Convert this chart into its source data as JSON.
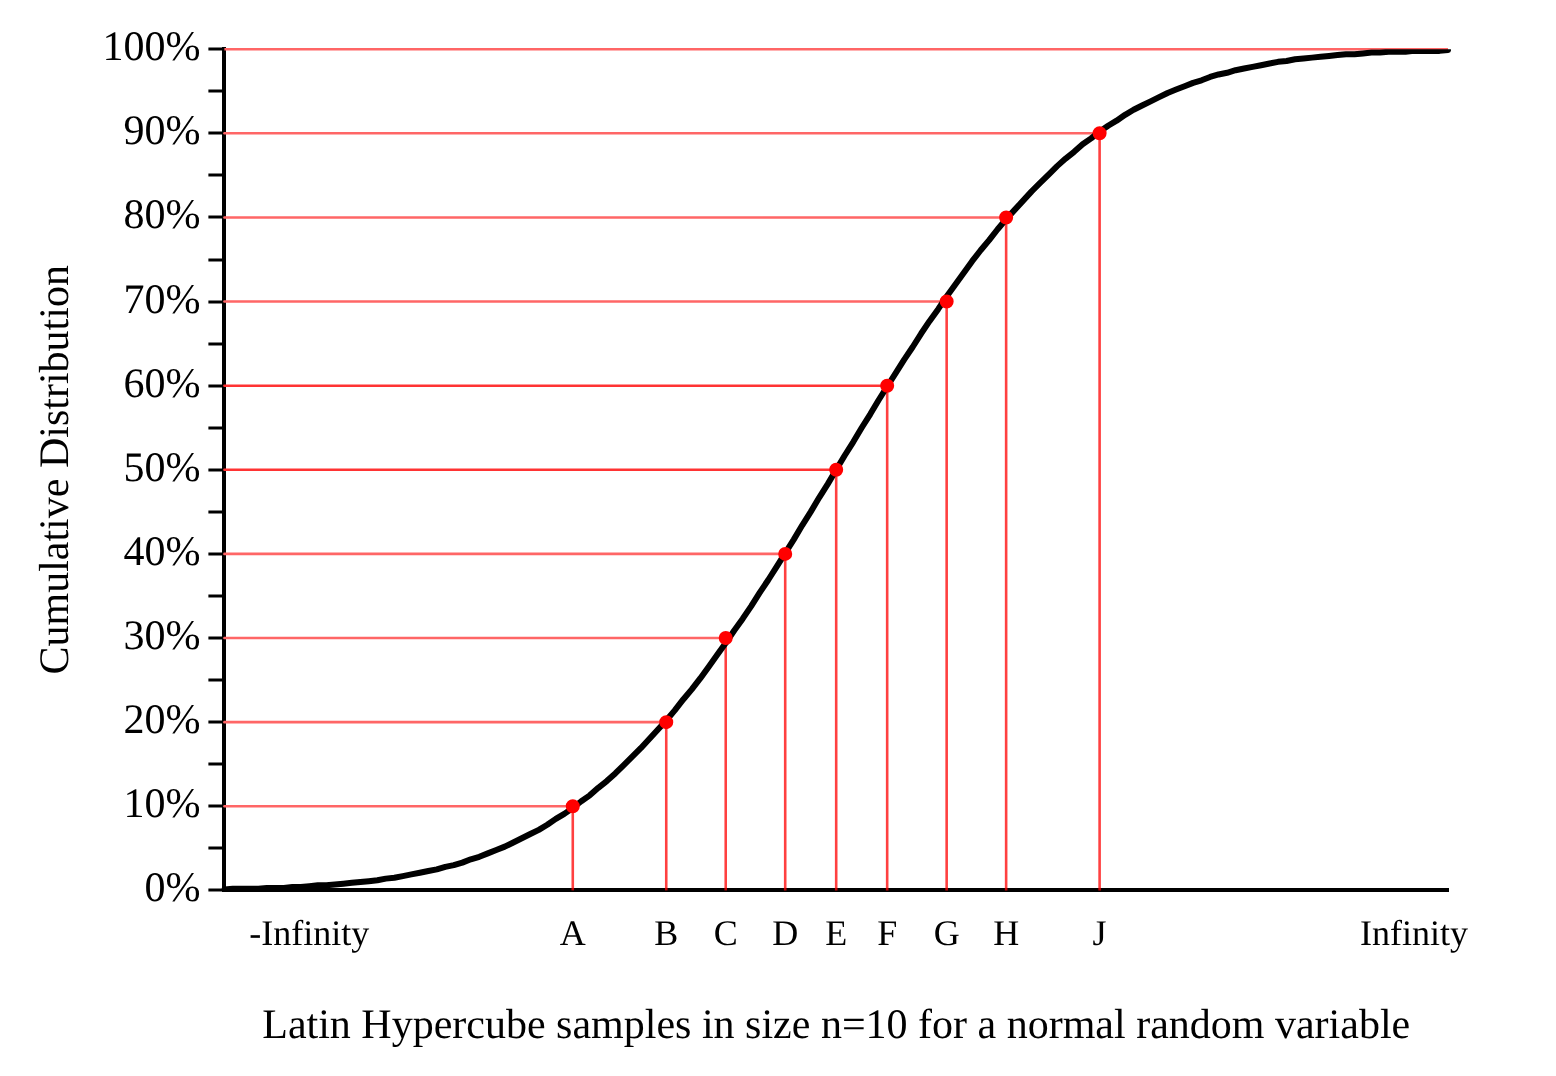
{
  "chart_data": {
    "type": "line",
    "xlabel": "Latin Hypercube samples in size n=10 for a normal random variable",
    "ylabel": "Cumulative Distribution",
    "categories": [
      null,
      null,
      null,
      null,
      null,
      null,
      null,
      null,
      null,
      null,
      "-Infinity",
      null,
      null,
      null,
      null,
      null,
      null,
      null,
      null,
      null,
      null,
      null,
      null,
      null,
      null,
      null,
      null,
      null,
      null,
      null,
      null,
      null,
      null,
      null,
      null,
      null,
      null,
      null,
      null,
      null,
      null,
      "A",
      null,
      null,
      null,
      null,
      null,
      null,
      null,
      null,
      null,
      null,
      "B",
      null,
      null,
      null,
      null,
      null,
      null,
      "C",
      null,
      null,
      null,
      null,
      null,
      null,
      "D",
      null,
      null,
      null,
      null,
      null,
      "E",
      null,
      null,
      null,
      null,
      null,
      "F",
      null,
      null,
      null,
      null,
      null,
      null,
      "G",
      null,
      null,
      null,
      null,
      null,
      null,
      "H",
      null,
      null,
      null,
      null,
      null,
      null,
      null,
      null,
      null,
      null,
      "J",
      null,
      null,
      null,
      null,
      null,
      null,
      null,
      null,
      null,
      null,
      null,
      null,
      null,
      null,
      null,
      null,
      null,
      null,
      null,
      null,
      null,
      null,
      null,
      null,
      null,
      null,
      null,
      null,
      null,
      null,
      null,
      null,
      null,
      null,
      null,
      null,
      "Infinity",
      null,
      null,
      null,
      null
    ],
    "ylim": [
      0,
      100
    ],
    "yticks": [
      {
        "value": 0,
        "label": "0%"
      },
      {
        "value": 5,
        "label": null
      },
      {
        "value": 10,
        "label": "10%"
      },
      {
        "value": 15,
        "label": null
      },
      {
        "value": 20,
        "label": "20%"
      },
      {
        "value": 25,
        "label": null
      },
      {
        "value": 30,
        "label": "30%"
      },
      {
        "value": 35,
        "label": null
      },
      {
        "value": 40,
        "label": "40%"
      },
      {
        "value": 45,
        "label": null
      },
      {
        "value": 50,
        "label": "50%"
      },
      {
        "value": 55,
        "label": null
      },
      {
        "value": 60,
        "label": "60%"
      },
      {
        "value": 65,
        "label": null
      },
      {
        "value": 70,
        "label": "70%"
      },
      {
        "value": 75,
        "label": null
      },
      {
        "value": 80,
        "label": "80%"
      },
      {
        "value": 85,
        "label": null
      },
      {
        "value": 90,
        "label": "90%"
      },
      {
        "value": 95,
        "label": null
      },
      {
        "value": 100,
        "label": "100%"
      }
    ],
    "grid": false,
    "legend": false,
    "marker": "none",
    "line_style": "solid",
    "ref_lines": [
      {
        "axis": "y",
        "value": 100,
        "color": "#ff6666"
      }
    ],
    "series": [
      {
        "color": "#ff6666",
        "values": [
          10,
          10,
          10,
          10,
          10,
          10,
          10,
          10,
          10,
          10,
          10,
          10,
          10,
          10,
          10,
          10,
          10,
          10,
          10,
          10,
          10,
          10,
          10,
          10,
          10,
          10,
          10,
          10,
          10,
          10,
          10,
          10,
          10,
          10,
          10,
          10,
          10,
          10,
          10,
          10,
          10,
          10,
          null,
          null,
          null,
          null,
          null,
          null,
          null,
          null,
          null,
          null,
          null,
          null,
          null,
          null,
          null,
          null,
          null,
          null,
          null,
          null,
          null,
          null,
          null,
          null,
          null,
          null,
          null,
          null,
          null,
          null,
          null,
          null,
          null,
          null,
          null,
          null,
          null,
          null,
          null,
          null,
          null,
          null,
          null,
          null,
          null,
          null,
          null,
          null,
          null,
          null,
          null,
          null,
          null,
          null,
          null,
          null,
          null,
          null,
          null,
          null,
          null,
          null,
          null,
          null,
          null,
          null,
          null,
          null,
          null,
          null,
          null,
          null,
          null,
          null,
          null,
          null,
          null,
          null,
          null,
          null,
          null,
          null,
          null,
          null,
          null,
          null,
          null,
          null,
          null,
          null,
          null,
          null,
          null,
          null,
          null,
          null,
          null,
          null,
          null,
          null,
          null,
          null,
          null
        ]
      },
      {
        "color": "#ff6666",
        "values": [
          20,
          20,
          20,
          20,
          20,
          20,
          20,
          20,
          20,
          20,
          20,
          20,
          20,
          20,
          20,
          20,
          20,
          20,
          20,
          20,
          20,
          20,
          20,
          20,
          20,
          20,
          20,
          20,
          20,
          20,
          20,
          20,
          20,
          20,
          20,
          20,
          20,
          20,
          20,
          20,
          20,
          20,
          20,
          20,
          20,
          20,
          20,
          20,
          20,
          20,
          20,
          20,
          20,
          null,
          null,
          null,
          null,
          null,
          null,
          null,
          null,
          null,
          null,
          null,
          null,
          null,
          null,
          null,
          null,
          null,
          null,
          null,
          null,
          null,
          null,
          null,
          null,
          null,
          null,
          null,
          null,
          null,
          null,
          null,
          null,
          null,
          null,
          null,
          null,
          null,
          null,
          null,
          null,
          null,
          null,
          null,
          null,
          null,
          null,
          null,
          null,
          null,
          null,
          null,
          null,
          null,
          null,
          null,
          null,
          null,
          null,
          null,
          null,
          null,
          null,
          null,
          null,
          null,
          null,
          null,
          null,
          null,
          null,
          null,
          null,
          null,
          null,
          null,
          null,
          null,
          null,
          null,
          null,
          null,
          null,
          null,
          null,
          null,
          null,
          null,
          null,
          null,
          null,
          null,
          null
        ]
      },
      {
        "color": "#ff6666",
        "values": [
          30,
          30,
          30,
          30,
          30,
          30,
          30,
          30,
          30,
          30,
          30,
          30,
          30,
          30,
          30,
          30,
          30,
          30,
          30,
          30,
          30,
          30,
          30,
          30,
          30,
          30,
          30,
          30,
          30,
          30,
          30,
          30,
          30,
          30,
          30,
          30,
          30,
          30,
          30,
          30,
          30,
          30,
          30,
          30,
          30,
          30,
          30,
          30,
          30,
          30,
          30,
          30,
          30,
          30,
          30,
          30,
          30,
          30,
          30,
          30,
          null,
          null,
          null,
          null,
          null,
          null,
          null,
          null,
          null,
          null,
          null,
          null,
          null,
          null,
          null,
          null,
          null,
          null,
          null,
          null,
          null,
          null,
          null,
          null,
          null,
          null,
          null,
          null,
          null,
          null,
          null,
          null,
          null,
          null,
          null,
          null,
          null,
          null,
          null,
          null,
          null,
          null,
          null,
          null,
          null,
          null,
          null,
          null,
          null,
          null,
          null,
          null,
          null,
          null,
          null,
          null,
          null,
          null,
          null,
          null,
          null,
          null,
          null,
          null,
          null,
          null,
          null,
          null,
          null,
          null,
          null,
          null,
          null,
          null,
          null,
          null,
          null,
          null,
          null,
          null,
          null,
          null,
          null,
          null,
          null
        ]
      },
      {
        "color": "#ff6666",
        "values": [
          40,
          40,
          40,
          40,
          40,
          40,
          40,
          40,
          40,
          40,
          40,
          40,
          40,
          40,
          40,
          40,
          40,
          40,
          40,
          40,
          40,
          40,
          40,
          40,
          40,
          40,
          40,
          40,
          40,
          40,
          40,
          40,
          40,
          40,
          40,
          40,
          40,
          40,
          40,
          40,
          40,
          40,
          40,
          40,
          40,
          40,
          40,
          40,
          40,
          40,
          40,
          40,
          40,
          40,
          40,
          40,
          40,
          40,
          40,
          40,
          40,
          40,
          40,
          40,
          40,
          40,
          40,
          null,
          null,
          null,
          null,
          null,
          null,
          null,
          null,
          null,
          null,
          null,
          null,
          null,
          null,
          null,
          null,
          null,
          null,
          null,
          null,
          null,
          null,
          null,
          null,
          null,
          null,
          null,
          null,
          null,
          null,
          null,
          null,
          null,
          null,
          null,
          null,
          null,
          null,
          null,
          null,
          null,
          null,
          null,
          null,
          null,
          null,
          null,
          null,
          null,
          null,
          null,
          null,
          null,
          null,
          null,
          null,
          null,
          null,
          null,
          null,
          null,
          null,
          null,
          null,
          null,
          null,
          null,
          null,
          null,
          null,
          null,
          null,
          null,
          null,
          null,
          null,
          null,
          null
        ]
      },
      {
        "color": "#ff3333",
        "values": [
          50,
          50,
          50,
          50,
          50,
          50,
          50,
          50,
          50,
          50,
          50,
          50,
          50,
          50,
          50,
          50,
          50,
          50,
          50,
          50,
          50,
          50,
          50,
          50,
          50,
          50,
          50,
          50,
          50,
          50,
          50,
          50,
          50,
          50,
          50,
          50,
          50,
          50,
          50,
          50,
          50,
          50,
          50,
          50,
          50,
          50,
          50,
          50,
          50,
          50,
          50,
          50,
          50,
          50,
          50,
          50,
          50,
          50,
          50,
          50,
          50,
          50,
          50,
          50,
          50,
          50,
          50,
          50,
          50,
          50,
          50,
          50,
          50,
          null,
          null,
          null,
          null,
          null,
          null,
          null,
          null,
          null,
          null,
          null,
          null,
          null,
          null,
          null,
          null,
          null,
          null,
          null,
          null,
          null,
          null,
          null,
          null,
          null,
          null,
          null,
          null,
          null,
          null,
          null,
          null,
          null,
          null,
          null,
          null,
          null,
          null,
          null,
          null,
          null,
          null,
          null,
          null,
          null,
          null,
          null,
          null,
          null,
          null,
          null,
          null,
          null,
          null,
          null,
          null,
          null,
          null,
          null,
          null,
          null,
          null,
          null,
          null,
          null,
          null,
          null,
          null,
          null,
          null,
          null,
          null
        ]
      },
      {
        "color": "#ff3333",
        "values": [
          60,
          60,
          60,
          60,
          60,
          60,
          60,
          60,
          60,
          60,
          60,
          60,
          60,
          60,
          60,
          60,
          60,
          60,
          60,
          60,
          60,
          60,
          60,
          60,
          60,
          60,
          60,
          60,
          60,
          60,
          60,
          60,
          60,
          60,
          60,
          60,
          60,
          60,
          60,
          60,
          60,
          60,
          60,
          60,
          60,
          60,
          60,
          60,
          60,
          60,
          60,
          60,
          60,
          60,
          60,
          60,
          60,
          60,
          60,
          60,
          60,
          60,
          60,
          60,
          60,
          60,
          60,
          60,
          60,
          60,
          60,
          60,
          60,
          60,
          60,
          60,
          60,
          60,
          60,
          null,
          null,
          null,
          null,
          null,
          null,
          null,
          null,
          null,
          null,
          null,
          null,
          null,
          null,
          null,
          null,
          null,
          null,
          null,
          null,
          null,
          null,
          null,
          null,
          null,
          null,
          null,
          null,
          null,
          null,
          null,
          null,
          null,
          null,
          null,
          null,
          null,
          null,
          null,
          null,
          null,
          null,
          null,
          null,
          null,
          null,
          null,
          null,
          null,
          null,
          null,
          null,
          null,
          null,
          null,
          null,
          null,
          null,
          null,
          null,
          null,
          null,
          null,
          null,
          null,
          null
        ]
      },
      {
        "color": "#ff6666",
        "values": [
          70,
          70,
          70,
          70,
          70,
          70,
          70,
          70,
          70,
          70,
          70,
          70,
          70,
          70,
          70,
          70,
          70,
          70,
          70,
          70,
          70,
          70,
          70,
          70,
          70,
          70,
          70,
          70,
          70,
          70,
          70,
          70,
          70,
          70,
          70,
          70,
          70,
          70,
          70,
          70,
          70,
          70,
          70,
          70,
          70,
          70,
          70,
          70,
          70,
          70,
          70,
          70,
          70,
          70,
          70,
          70,
          70,
          70,
          70,
          70,
          70,
          70,
          70,
          70,
          70,
          70,
          70,
          70,
          70,
          70,
          70,
          70,
          70,
          70,
          70,
          70,
          70,
          70,
          70,
          70,
          70,
          70,
          70,
          70,
          70,
          70,
          null,
          null,
          null,
          null,
          null,
          null,
          null,
          null,
          null,
          null,
          null,
          null,
          null,
          null,
          null,
          null,
          null,
          null,
          null,
          null,
          null,
          null,
          null,
          null,
          null,
          null,
          null,
          null,
          null,
          null,
          null,
          null,
          null,
          null,
          null,
          null,
          null,
          null,
          null,
          null,
          null,
          null,
          null,
          null,
          null,
          null,
          null,
          null,
          null,
          null,
          null,
          null,
          null,
          null,
          null,
          null,
          null,
          null,
          null
        ]
      },
      {
        "color": "#ff6666",
        "values": [
          80,
          80,
          80,
          80,
          80,
          80,
          80,
          80,
          80,
          80,
          80,
          80,
          80,
          80,
          80,
          80,
          80,
          80,
          80,
          80,
          80,
          80,
          80,
          80,
          80,
          80,
          80,
          80,
          80,
          80,
          80,
          80,
          80,
          80,
          80,
          80,
          80,
          80,
          80,
          80,
          80,
          80,
          80,
          80,
          80,
          80,
          80,
          80,
          80,
          80,
          80,
          80,
          80,
          80,
          80,
          80,
          80,
          80,
          80,
          80,
          80,
          80,
          80,
          80,
          80,
          80,
          80,
          80,
          80,
          80,
          80,
          80,
          80,
          80,
          80,
          80,
          80,
          80,
          80,
          80,
          80,
          80,
          80,
          80,
          80,
          80,
          80,
          80,
          80,
          80,
          80,
          80,
          80,
          null,
          null,
          null,
          null,
          null,
          null,
          null,
          null,
          null,
          null,
          null,
          null,
          null,
          null,
          null,
          null,
          null,
          null,
          null,
          null,
          null,
          null,
          null,
          null,
          null,
          null,
          null,
          null,
          null,
          null,
          null,
          null,
          null,
          null,
          null,
          null,
          null,
          null,
          null,
          null,
          null,
          null,
          null,
          null,
          null,
          null,
          null,
          null,
          null,
          null,
          null,
          null
        ]
      },
      {
        "color": "#ff6666",
        "values": [
          90,
          90,
          90,
          90,
          90,
          90,
          90,
          90,
          90,
          90,
          90,
          90,
          90,
          90,
          90,
          90,
          90,
          90,
          90,
          90,
          90,
          90,
          90,
          90,
          90,
          90,
          90,
          90,
          90,
          90,
          90,
          90,
          90,
          90,
          90,
          90,
          90,
          90,
          90,
          90,
          90,
          90,
          90,
          90,
          90,
          90,
          90,
          90,
          90,
          90,
          90,
          90,
          90,
          90,
          90,
          90,
          90,
          90,
          90,
          90,
          90,
          90,
          90,
          90,
          90,
          90,
          90,
          90,
          90,
          90,
          90,
          90,
          90,
          90,
          90,
          90,
          90,
          90,
          90,
          90,
          90,
          90,
          90,
          90,
          90,
          90,
          90,
          90,
          90,
          90,
          90,
          90,
          90,
          90,
          90,
          90,
          90,
          90,
          90,
          90,
          90,
          90,
          90,
          90,
          null,
          null,
          null,
          null,
          null,
          null,
          null,
          null,
          null,
          null,
          null,
          null,
          null,
          null,
          null,
          null,
          null,
          null,
          null,
          null,
          null,
          null,
          null,
          null,
          null,
          null,
          null,
          null,
          null,
          null,
          null,
          null,
          null,
          null,
          null,
          null,
          null,
          null,
          null,
          null,
          null
        ]
      },
      {
        "color": "#000000",
        "values": [
          0.1,
          0.2,
          0.2,
          0.2,
          0.2,
          0.3,
          0.3,
          0.3,
          0.4,
          0.4,
          0.5,
          0.6,
          0.6,
          0.7,
          0.8,
          0.9,
          1.0,
          1.1,
          1.2,
          1.4,
          1.5,
          1.7,
          1.9,
          2.1,
          2.3,
          2.5,
          2.8,
          3.0,
          3.3,
          3.7,
          4.0,
          4.4,
          4.8,
          5.2,
          5.7,
          6.2,
          6.7,
          7.2,
          7.8,
          8.5,
          9.1,
          9.8,
          10.6,
          11.3,
          12.2,
          13.0,
          13.9,
          14.9,
          15.9,
          16.9,
          18.0,
          19.1,
          20.2,
          21.4,
          22.7,
          23.9,
          25.2,
          26.6,
          28.0,
          29.4,
          30.9,
          32.3,
          33.8,
          35.4,
          36.9,
          38.5,
          40.1,
          41.7,
          43.4,
          45.0,
          46.7,
          48.3,
          50.0,
          51.7,
          53.3,
          55.0,
          56.6,
          58.3,
          59.9,
          61.5,
          63.1,
          64.6,
          66.2,
          67.7,
          69.1,
          70.6,
          72.0,
          73.4,
          74.8,
          76.1,
          77.3,
          78.6,
          79.8,
          80.9,
          82.0,
          83.1,
          84.1,
          85.1,
          86.1,
          87.0,
          87.8,
          88.7,
          89.4,
          90.2,
          90.9,
          91.5,
          92.2,
          92.8,
          93.3,
          93.8,
          94.3,
          94.8,
          95.2,
          95.6,
          96.0,
          96.3,
          96.7,
          97.0,
          97.2,
          97.5,
          97.7,
          97.9,
          98.1,
          98.3,
          98.5,
          98.6,
          98.8,
          98.9,
          99.0,
          99.1,
          99.2,
          99.3,
          99.4,
          99.4,
          99.5,
          99.6,
          99.6,
          99.7,
          99.7,
          99.7,
          99.8,
          99.8,
          99.8,
          99.8,
          99.9
        ]
      },
      {
        "type": "lollipop",
        "marker": "circle",
        "color": "#ff0000",
        "values": [
          null,
          null,
          null,
          null,
          null,
          null,
          null,
          null,
          null,
          null,
          null,
          null,
          null,
          null,
          null,
          null,
          null,
          null,
          null,
          null,
          null,
          null,
          null,
          null,
          null,
          null,
          null,
          null,
          null,
          null,
          null,
          null,
          null,
          null,
          null,
          null,
          null,
          null,
          null,
          null,
          null,
          10,
          null,
          null,
          null,
          null,
          null,
          null,
          null,
          null,
          null,
          null,
          20,
          null,
          null,
          null,
          null,
          null,
          null,
          30,
          null,
          null,
          null,
          null,
          null,
          null,
          40,
          null,
          null,
          null,
          null,
          null,
          50,
          null,
          null,
          null,
          null,
          null,
          60,
          null,
          null,
          null,
          null,
          null,
          null,
          70,
          null,
          null,
          null,
          null,
          null,
          null,
          80,
          null,
          null,
          null,
          null,
          null,
          null,
          null,
          null,
          null,
          null,
          90,
          null,
          null,
          null,
          null,
          null,
          null,
          null,
          null,
          null,
          null,
          null,
          null,
          null,
          null,
          null,
          null,
          null,
          null,
          null,
          null,
          null,
          null,
          null,
          null,
          null,
          null,
          null,
          null,
          null,
          null,
          null,
          null,
          null,
          null,
          null,
          null,
          null,
          null,
          null,
          null,
          null
        ]
      }
    ]
  }
}
